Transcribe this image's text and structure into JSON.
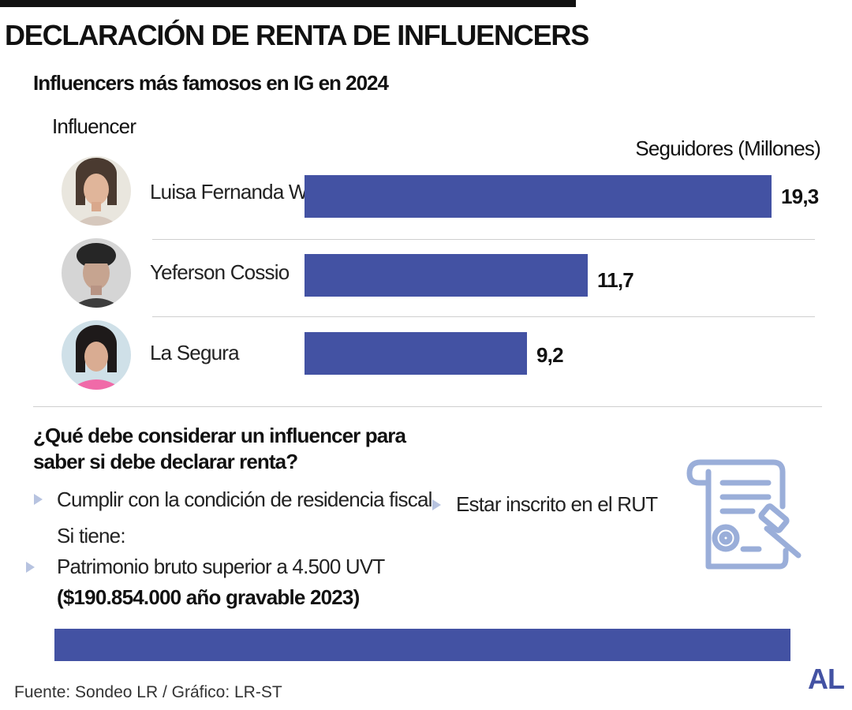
{
  "header": {
    "title": "DECLARACIÓN DE RENTA DE INFLUENCERS",
    "subtitle": "Influencers más famosos en IG en 2024"
  },
  "colors": {
    "bar": "#4352A3",
    "icon": "#9AAED9",
    "arrow": "#B7C3E0",
    "logo": "#4352A3"
  },
  "chart_data": {
    "type": "bar",
    "orientation": "horizontal",
    "title": "Influencers más famosos en IG en 2024",
    "category_label": "Influencer",
    "value_label": "Seguidores (Millones)",
    "categories": [
      "Luisa Fernanda W",
      "Yeferson Cossio",
      "La Segura"
    ],
    "values": [
      19.3,
      11.7,
      9.2
    ],
    "value_labels": [
      "19,3",
      "11,7",
      "9,2"
    ],
    "xlim": [
      0,
      19.3
    ],
    "grid": false
  },
  "questions": {
    "title": "¿Qué debe considerar un influencer para saber si debe declarar renta?",
    "criteria": [
      "Cumplir con la condición de residencia fiscal",
      "Estar inscrito en el RUT"
    ],
    "conditional_intro": "Si tiene:",
    "conditional_item": "Patrimonio bruto superior a 4.500 UVT",
    "conditional_detail": "($190.854.000 año gravable 2023)"
  },
  "footer": {
    "source": "Fuente: Sondeo LR / Gráfico: LR-ST",
    "logo": "AL"
  }
}
